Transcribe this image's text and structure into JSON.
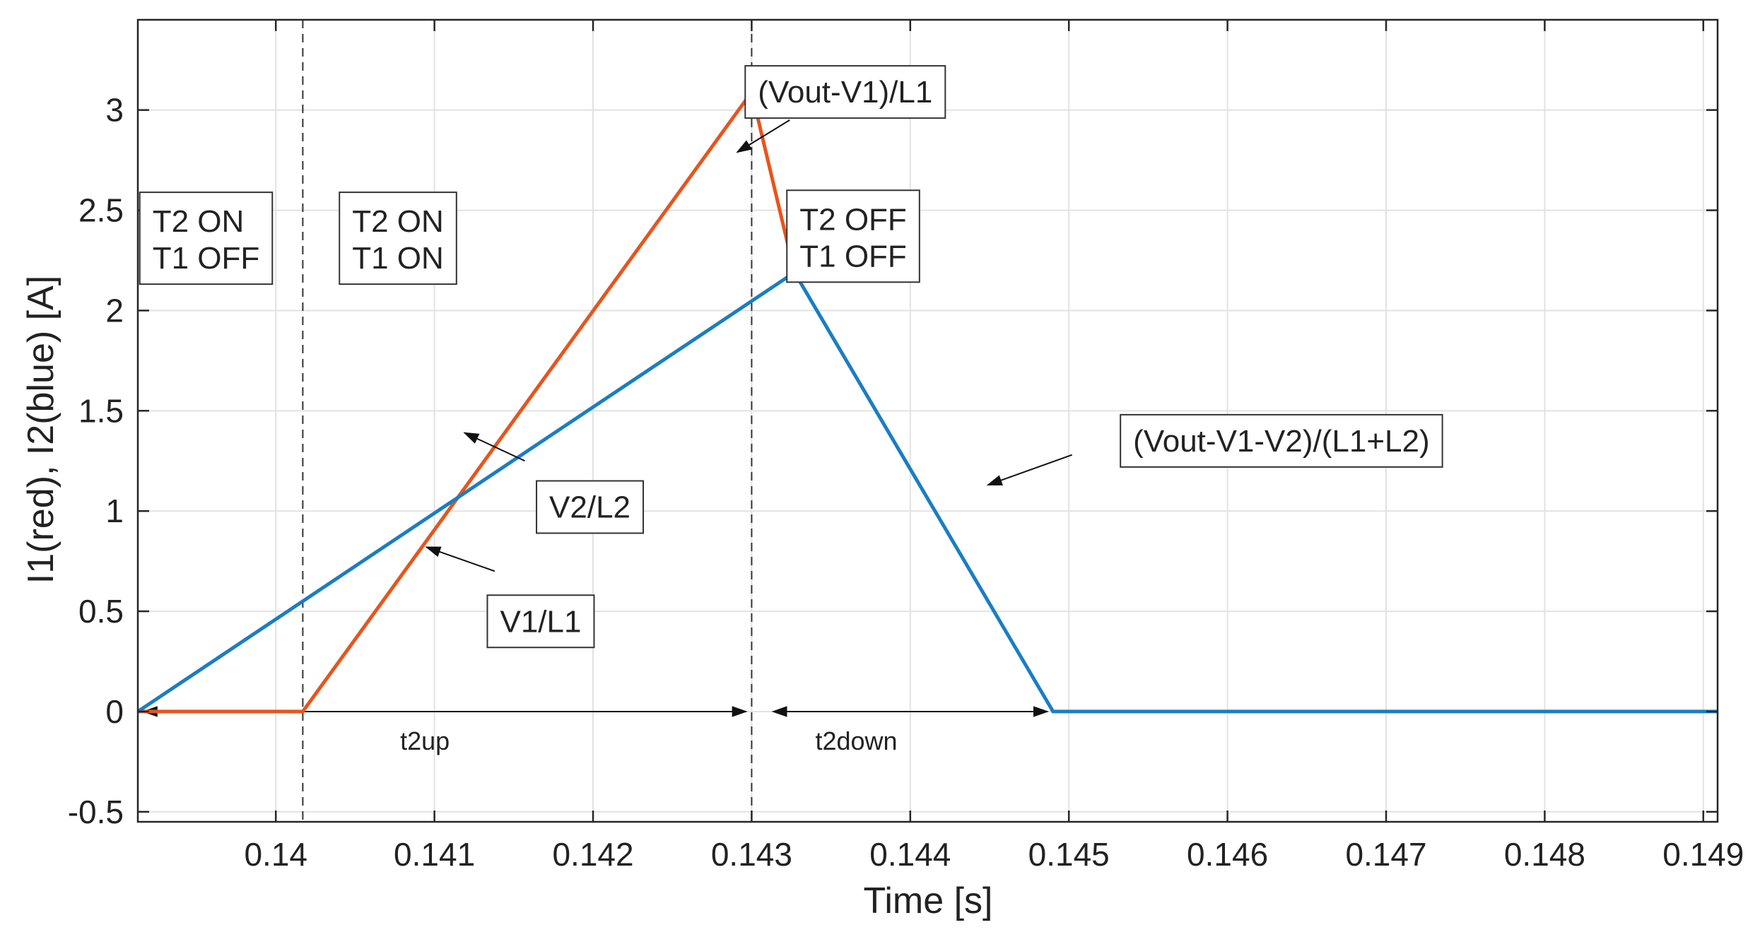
{
  "chart_data": {
    "type": "line",
    "title": "",
    "xlabel": "Time [s]",
    "ylabel": "I1(red), I2(blue) [A]",
    "xlim": [
      0.13913,
      0.14909
    ],
    "ylim": [
      -0.55,
      3.45
    ],
    "grid": true,
    "x_ticks": [
      0.14,
      0.141,
      0.142,
      0.143,
      0.144,
      0.145,
      0.146,
      0.147,
      0.148,
      0.149
    ],
    "x_tick_labels": [
      "0.14",
      "0.141",
      "0.142",
      "0.143",
      "0.144",
      "0.145",
      "0.146",
      "0.147",
      "0.148",
      "0.149"
    ],
    "y_ticks": [
      -0.5,
      0,
      0.5,
      1,
      1.5,
      2,
      2.5,
      3
    ],
    "y_tick_labels": [
      "-0.5",
      "0",
      "0.5",
      "1",
      "1.5",
      "2",
      "2.5",
      "3"
    ],
    "series": [
      {
        "name": "I1",
        "color": "#E8541C",
        "x": [
          0.13913,
          0.14017,
          0.143,
          0.14327
        ],
        "y": [
          0,
          0,
          3.09,
          2.19
        ]
      },
      {
        "name": "I2",
        "color": "#1B7DC3",
        "x": [
          0.13913,
          0.14327,
          0.1449,
          0.14909
        ],
        "y": [
          0,
          2.19,
          0,
          0
        ]
      }
    ],
    "vlines": [
      {
        "name": "t1-on-marker",
        "x": 0.14017
      },
      {
        "name": "t1-off-marker",
        "x": 0.143
      }
    ],
    "annotations": [
      {
        "name": "annotation-vout-v1-l1",
        "text": "(Vout-V1)/L1",
        "box_center": [
          0.14359,
          3.09
        ],
        "arrow_from": [
          0.14324,
          2.95
        ],
        "arrow_to": [
          0.14291,
          2.79
        ]
      },
      {
        "name": "annotation-v2-l2",
        "text": "V2/L2",
        "box_center": [
          0.14198,
          1.02
        ],
        "arrow_from": [
          0.14157,
          1.25
        ],
        "arrow_to": [
          0.14119,
          1.39
        ]
      },
      {
        "name": "annotation-v1-l1",
        "text": "V1/L1",
        "box_center": [
          0.14167,
          0.45
        ],
        "arrow_from": [
          0.14138,
          0.7
        ],
        "arrow_to": [
          0.14095,
          0.82
        ]
      },
      {
        "name": "annotation-vout-v1-v2",
        "text": "(Vout-V1-V2)/(L1+L2)",
        "box_center": [
          0.14634,
          1.35
        ],
        "arrow_from": [
          0.14502,
          1.28
        ],
        "arrow_to": [
          0.14449,
          1.13
        ]
      }
    ],
    "phase_labels": [
      {
        "name": "phase-t2on-t1off",
        "lines": [
          "T2 ON",
          "T1 OFF"
        ],
        "box_center": [
          0.13956,
          2.35
        ]
      },
      {
        "name": "phase-t2on-t1on",
        "lines": [
          "T2 ON",
          "T1 ON"
        ],
        "box_center": [
          0.14077,
          2.35
        ]
      },
      {
        "name": "phase-t2off-t1off",
        "lines": [
          "T2 OFF",
          "T1 OFF"
        ],
        "box_center": [
          0.14364,
          2.36
        ]
      }
    ],
    "intervals": [
      {
        "name": "interval-t2up",
        "label": "t2up",
        "from": 0.13913,
        "to": 0.143,
        "y": 0,
        "label_at": [
          0.14094,
          -0.19
        ]
      },
      {
        "name": "interval-t2down",
        "label": "t2down",
        "from": 0.1431,
        "to": 0.1449,
        "y": 0,
        "label_at": [
          0.14366,
          -0.19
        ]
      }
    ]
  }
}
